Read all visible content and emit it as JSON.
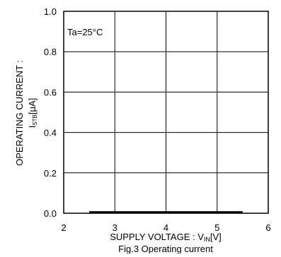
{
  "chart_data": {
    "type": "line",
    "annotation": "Ta=25°C",
    "xlabel": {
      "main": "SUPPLY VOLTAGE : V",
      "sub": "IN",
      "unit": "[V]"
    },
    "ylabel": {
      "line1": "OPERATING CURRENT :",
      "main": "I",
      "sub": "STB",
      "unit": "[μA]"
    },
    "caption": "Fig.3 Operating current",
    "xlim": [
      2,
      6
    ],
    "ylim": [
      0,
      1.0
    ],
    "xticks": [
      2,
      3,
      4,
      5,
      6
    ],
    "xtick_labels": [
      "2",
      "3",
      "4",
      "5",
      "6"
    ],
    "yticks": [
      0,
      0.2,
      0.4,
      0.6,
      0.8,
      1.0
    ],
    "ytick_labels": [
      "0.0",
      "0.2",
      "0.4",
      "0.6",
      "0.8",
      "1.0"
    ],
    "grid": true,
    "series": [
      {
        "x": [
          2.5,
          5.5
        ],
        "y": [
          0.005,
          0.005
        ]
      }
    ],
    "colors": {
      "line": "#000000",
      "grid": "#000000"
    }
  }
}
